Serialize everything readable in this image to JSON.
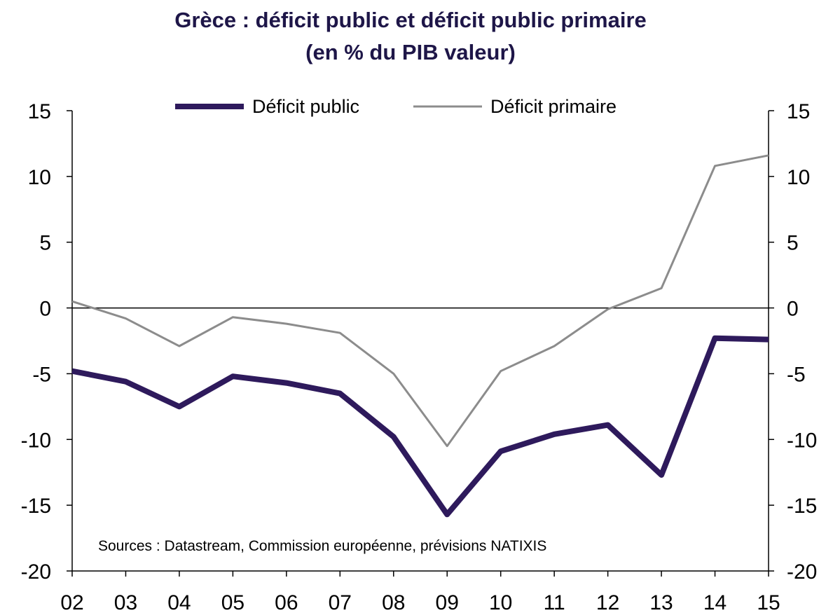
{
  "chart_data": {
    "type": "line",
    "title": "Grèce : déficit public et déficit public primaire",
    "subtitle": "(en % du PIB valeur)",
    "categories": [
      "02",
      "03",
      "04",
      "05",
      "06",
      "07",
      "08",
      "09",
      "10",
      "11",
      "12",
      "13",
      "14",
      "15"
    ],
    "series": [
      {
        "name": "Déficit public",
        "color": "#2e1a5c",
        "values": [
          -4.8,
          -5.6,
          -7.5,
          -5.2,
          -5.7,
          -6.5,
          -9.8,
          -15.7,
          -10.9,
          -9.6,
          -8.9,
          -12.7,
          -2.3,
          -2.4
        ]
      },
      {
        "name": "Déficit primaire",
        "color": "#8c8c8c",
        "values": [
          0.5,
          -0.8,
          -2.9,
          -0.7,
          -1.2,
          -1.9,
          -5.0,
          -10.5,
          -4.8,
          -2.9,
          -0.1,
          1.5,
          10.8,
          11.6
        ]
      }
    ],
    "ylim": [
      -20,
      15
    ],
    "yticks": [
      15,
      10,
      5,
      0,
      -5,
      -10,
      -15,
      -20
    ],
    "xlabel": "",
    "ylabel": "",
    "legend": "top-center",
    "grid": false,
    "annotation": "Sources : Datastream, Commission européenne, prévisions NATIXIS"
  }
}
